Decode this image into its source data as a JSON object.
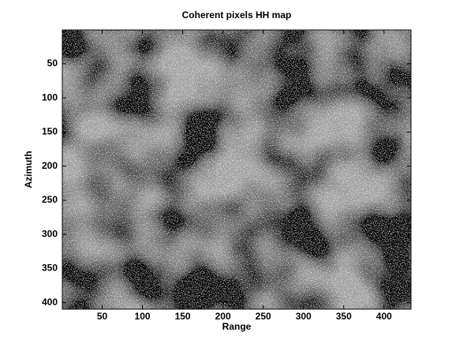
{
  "chart_data": {
    "type": "image",
    "title": "Coherent pixels HH map",
    "xlabel": "Range",
    "ylabel": "Azimuth",
    "xlim": [
      0.5,
      433.5
    ],
    "ylim": [
      0.5,
      409.5
    ],
    "xticks": [
      50,
      100,
      150,
      200,
      250,
      300,
      350,
      400
    ],
    "yticks": [
      50,
      100,
      150,
      200,
      250,
      300,
      350,
      400
    ],
    "y_reversed": true
  }
}
